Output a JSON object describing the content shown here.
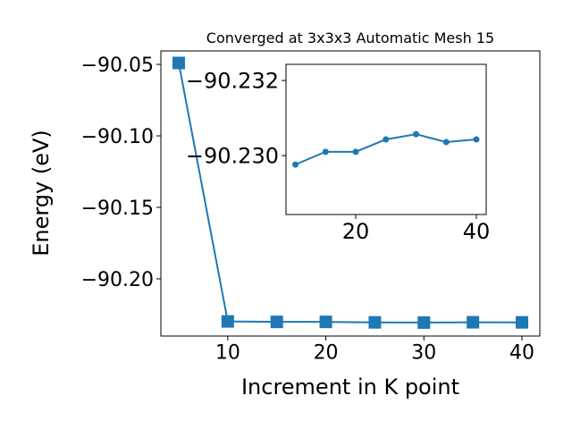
{
  "chart_data": [
    {
      "type": "line",
      "title": "Converged at 3x3x3 Automatic Mesh 15",
      "xlabel": "Increment in K point",
      "ylabel": "Energy (eV)",
      "x": [
        5,
        10,
        15,
        20,
        25,
        30,
        35,
        40
      ],
      "series": [
        {
          "color": "#1f77b4",
          "marker": "square",
          "values": [
            -90.049,
            -90.22976,
            -90.2301,
            -90.2301,
            -90.23043,
            -90.23057,
            -90.23036,
            -90.23043
          ]
        }
      ],
      "xlim": [
        3.18,
        41.82
      ],
      "ylim": [
        -90.24,
        -90.0406
      ],
      "xticks": [
        10,
        20,
        30,
        40
      ],
      "yticks": [
        {
          "value": -90.05,
          "label": "−90.05"
        },
        {
          "value": -90.1,
          "label": "−90.10"
        },
        {
          "value": -90.15,
          "label": "−90.15"
        },
        {
          "value": -90.2,
          "label": "−90.20"
        }
      ]
    },
    {
      "type": "line",
      "x": [
        10,
        15,
        20,
        25,
        30,
        35,
        40
      ],
      "series": [
        {
          "color": "#1f77b4",
          "marker": "circle",
          "values": [
            -90.22976,
            -90.2301,
            -90.2301,
            -90.23043,
            -90.23057,
            -90.23036,
            -90.23043
          ]
        }
      ],
      "xlim": [
        8.44,
        41.63
      ],
      "ylim": [
        -90.22843,
        -90.23243
      ],
      "xticks": [
        20,
        40
      ],
      "yticks": [
        {
          "value": -90.232,
          "label": "−90.232"
        },
        {
          "value": -90.23,
          "label": "−90.230"
        }
      ]
    }
  ]
}
